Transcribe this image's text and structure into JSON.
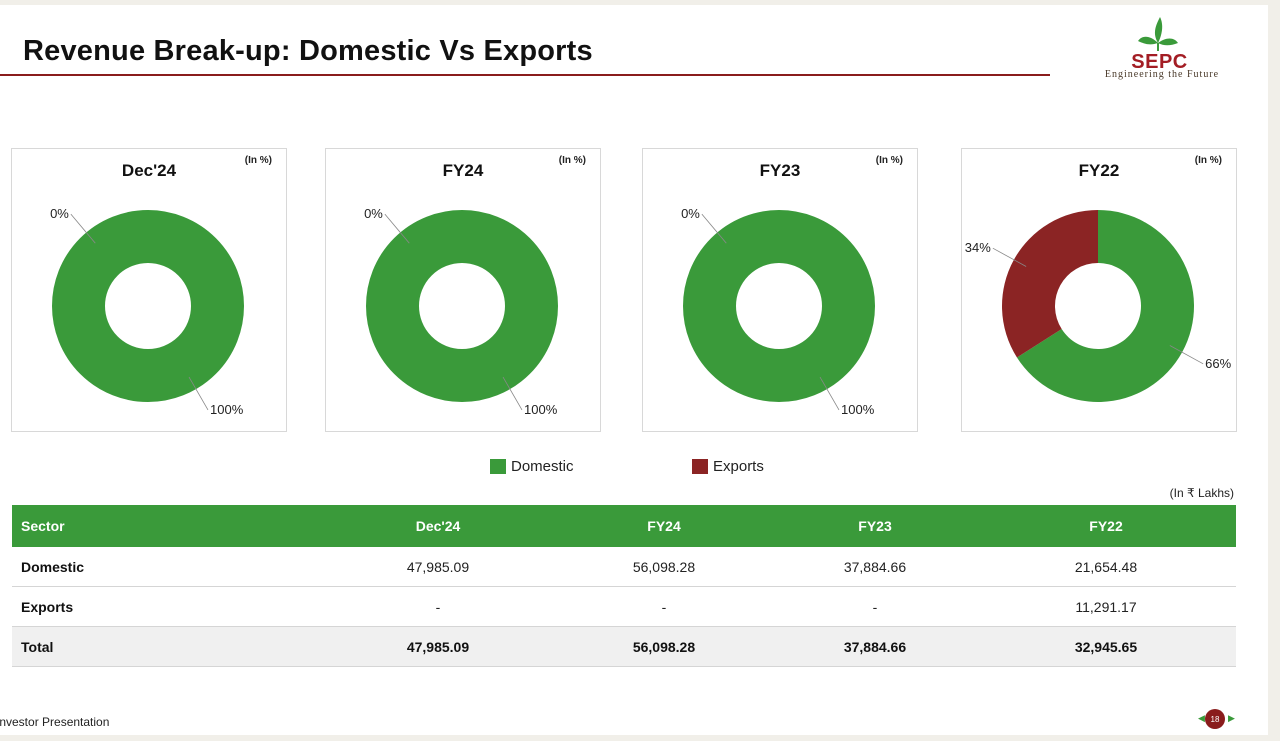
{
  "title": "Revenue Break-up: Domestic Vs Exports",
  "logo": {
    "text": "SEPC",
    "tagline": "Engineering the Future"
  },
  "colors": {
    "domestic": "#3a9a3a",
    "exports": "#8b2424",
    "accent": "#8a1c1c"
  },
  "chart_data": [
    {
      "type": "pie",
      "title": "Dec'24",
      "unit": "(In %)",
      "categories": [
        "Domestic",
        "Exports"
      ],
      "values": [
        100,
        0
      ],
      "labels": [
        "100%",
        "0%"
      ]
    },
    {
      "type": "pie",
      "title": "FY24",
      "unit": "(In %)",
      "categories": [
        "Domestic",
        "Exports"
      ],
      "values": [
        100,
        0
      ],
      "labels": [
        "100%",
        "0%"
      ]
    },
    {
      "type": "pie",
      "title": "FY23",
      "unit": "(In %)",
      "categories": [
        "Domestic",
        "Exports"
      ],
      "values": [
        100,
        0
      ],
      "labels": [
        "100%",
        "0%"
      ]
    },
    {
      "type": "pie",
      "title": "FY22",
      "unit": "(In %)",
      "categories": [
        "Domestic",
        "Exports"
      ],
      "values": [
        66,
        34
      ],
      "labels": [
        "66%",
        "34%"
      ]
    }
  ],
  "legend": [
    {
      "label": "Domestic",
      "color": "#3a9a3a"
    },
    {
      "label": "Exports",
      "color": "#8b2424"
    }
  ],
  "table": {
    "unit": "(In ₹ Lakhs)",
    "headers": [
      "Sector",
      "Dec'24",
      "FY24",
      "FY23",
      "FY22"
    ],
    "rows": [
      [
        "Domestic",
        "47,985.09",
        "56,098.28",
        "37,884.66",
        "21,654.48"
      ],
      [
        "Exports",
        "-",
        "-",
        "-",
        "11,291.17"
      ],
      [
        "Total",
        "47,985.09",
        "56,098.28",
        "37,884.66",
        "32,945.65"
      ]
    ]
  },
  "footer": {
    "text": "Investor Presentation",
    "page": "18"
  }
}
